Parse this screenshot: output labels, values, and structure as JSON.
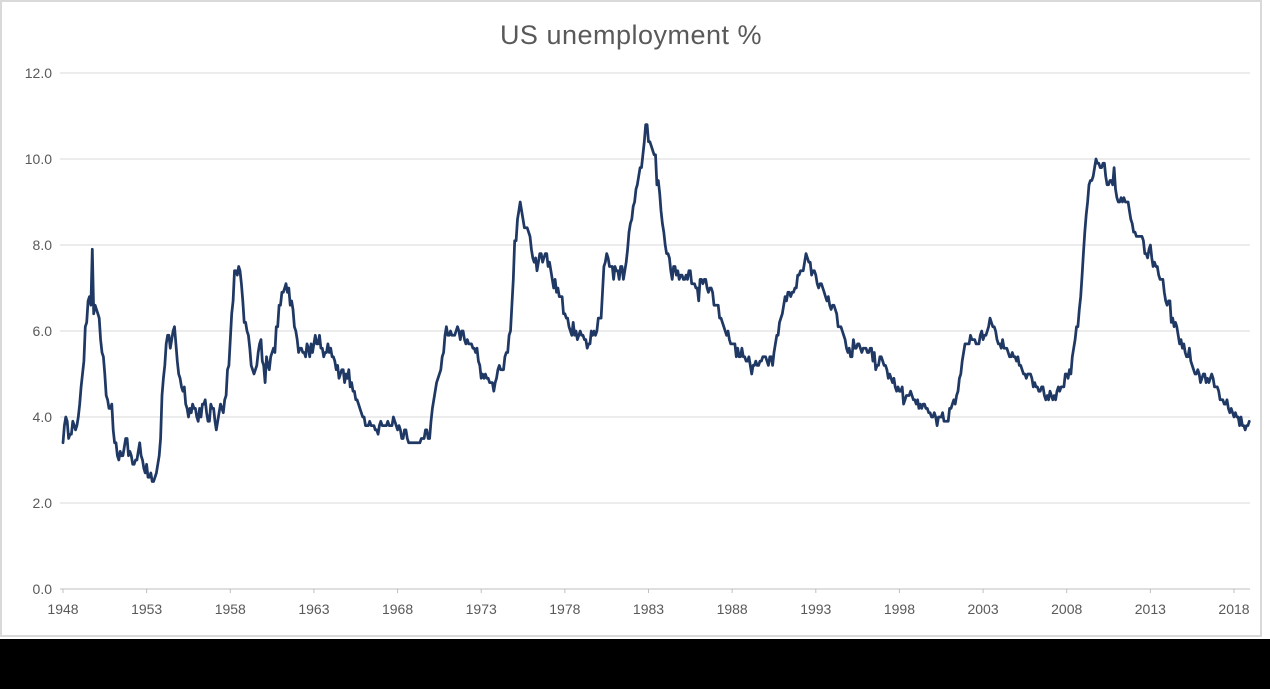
{
  "window": {
    "background_color": "#ffffff",
    "frame_border_color": "#d9d9d9",
    "letterbox_color": "#000000"
  },
  "chart": {
    "title": "US unemployment %",
    "title_color": "#595959",
    "line_color": "#1f3864",
    "gridline_color": "#d9d9d9",
    "axis_color": "#bfbfbf",
    "tick_label_color": "#595959"
  },
  "chart_data": {
    "type": "line",
    "title": "US unemployment %",
    "xlabel": "",
    "ylabel": "",
    "ylim": [
      0,
      12
    ],
    "grid": "horizontal",
    "legend": "none",
    "x_start_year": 1948,
    "frequency": "monthly",
    "x_tick_years": [
      1948,
      1953,
      1958,
      1963,
      1968,
      1973,
      1978,
      1983,
      1988,
      1993,
      1998,
      2003,
      2008,
      2013,
      2018
    ],
    "y_ticks": [
      0,
      2,
      4,
      6,
      8,
      10,
      12
    ],
    "y_tick_labels": [
      "0.0",
      "2.0",
      "4.0",
      "6.0",
      "8.0",
      "10.0",
      "12.0"
    ],
    "series": [
      {
        "name": "US unemployment %",
        "values": [
          3.4,
          3.8,
          4.0,
          3.9,
          3.5,
          3.6,
          3.6,
          3.9,
          3.8,
          3.7,
          3.8,
          4.0,
          4.3,
          4.7,
          5.0,
          5.3,
          6.1,
          6.2,
          6.7,
          6.8,
          6.6,
          7.9,
          6.4,
          6.6,
          6.5,
          6.4,
          6.3,
          5.8,
          5.5,
          5.4,
          5.0,
          4.5,
          4.4,
          4.2,
          4.2,
          4.3,
          3.7,
          3.4,
          3.4,
          3.1,
          3.0,
          3.2,
          3.1,
          3.1,
          3.3,
          3.5,
          3.5,
          3.1,
          3.2,
          3.1,
          2.9,
          2.9,
          3.0,
          3.0,
          3.2,
          3.4,
          3.1,
          3.0,
          2.8,
          2.7,
          2.9,
          2.6,
          2.6,
          2.7,
          2.5,
          2.5,
          2.6,
          2.7,
          2.9,
          3.1,
          3.5,
          4.5,
          4.9,
          5.2,
          5.7,
          5.9,
          5.9,
          5.6,
          5.8,
          6.0,
          6.1,
          5.7,
          5.3,
          5.0,
          4.9,
          4.7,
          4.6,
          4.7,
          4.3,
          4.2,
          4.0,
          4.2,
          4.1,
          4.3,
          4.2,
          4.2,
          4.0,
          3.9,
          4.2,
          4.0,
          4.3,
          4.3,
          4.4,
          4.1,
          3.9,
          3.9,
          4.3,
          4.2,
          4.2,
          3.9,
          3.7,
          3.9,
          4.1,
          4.3,
          4.2,
          4.1,
          4.4,
          4.5,
          5.1,
          5.2,
          5.8,
          6.4,
          6.7,
          7.4,
          7.4,
          7.3,
          7.5,
          7.4,
          7.1,
          6.7,
          6.2,
          6.2,
          6.0,
          5.9,
          5.6,
          5.2,
          5.1,
          5.0,
          5.1,
          5.2,
          5.5,
          5.7,
          5.8,
          5.3,
          5.2,
          4.8,
          5.4,
          5.2,
          5.1,
          5.4,
          5.5,
          5.6,
          5.5,
          6.1,
          6.1,
          6.6,
          6.6,
          6.9,
          6.9,
          7.0,
          7.1,
          6.9,
          7.0,
          6.6,
          6.7,
          6.5,
          6.1,
          6.0,
          5.8,
          5.5,
          5.6,
          5.6,
          5.5,
          5.5,
          5.4,
          5.7,
          5.6,
          5.4,
          5.7,
          5.5,
          5.7,
          5.9,
          5.7,
          5.7,
          5.9,
          5.6,
          5.6,
          5.4,
          5.5,
          5.5,
          5.7,
          5.5,
          5.6,
          5.4,
          5.4,
          5.3,
          5.1,
          5.2,
          4.9,
          5.0,
          5.1,
          5.1,
          4.8,
          5.0,
          4.9,
          5.1,
          4.7,
          4.8,
          4.6,
          4.6,
          4.4,
          4.4,
          4.3,
          4.2,
          4.1,
          4.0,
          4.0,
          3.8,
          3.8,
          3.8,
          3.9,
          3.8,
          3.8,
          3.8,
          3.7,
          3.7,
          3.6,
          3.8,
          3.9,
          3.8,
          3.8,
          3.8,
          3.8,
          3.9,
          3.8,
          3.8,
          3.8,
          4.0,
          3.9,
          3.8,
          3.7,
          3.8,
          3.7,
          3.5,
          3.5,
          3.7,
          3.7,
          3.5,
          3.4,
          3.4,
          3.4,
          3.4,
          3.4,
          3.4,
          3.4,
          3.4,
          3.4,
          3.5,
          3.5,
          3.5,
          3.7,
          3.7,
          3.5,
          3.5,
          3.9,
          4.2,
          4.4,
          4.6,
          4.8,
          4.9,
          5.0,
          5.1,
          5.4,
          5.5,
          5.9,
          6.1,
          5.9,
          5.9,
          6.0,
          5.9,
          5.9,
          5.9,
          6.0,
          6.1,
          6.0,
          5.8,
          6.0,
          6.0,
          5.8,
          5.7,
          5.8,
          5.7,
          5.7,
          5.7,
          5.6,
          5.6,
          5.5,
          5.6,
          5.3,
          5.2,
          4.9,
          5.0,
          4.9,
          5.0,
          4.9,
          4.9,
          4.8,
          4.8,
          4.8,
          4.6,
          4.8,
          4.9,
          5.1,
          5.2,
          5.1,
          5.1,
          5.1,
          5.4,
          5.5,
          5.5,
          5.9,
          6.0,
          6.6,
          7.2,
          8.1,
          8.1,
          8.6,
          8.8,
          9.0,
          8.8,
          8.6,
          8.4,
          8.4,
          8.4,
          8.3,
          8.2,
          7.9,
          7.7,
          7.6,
          7.7,
          7.4,
          7.6,
          7.8,
          7.8,
          7.6,
          7.7,
          7.8,
          7.8,
          7.5,
          7.6,
          7.4,
          7.2,
          7.0,
          7.2,
          6.9,
          7.0,
          6.8,
          6.8,
          6.8,
          6.4,
          6.4,
          6.3,
          6.3,
          6.1,
          6.0,
          5.9,
          6.2,
          5.9,
          6.0,
          5.8,
          5.9,
          6.0,
          5.9,
          5.9,
          5.8,
          5.8,
          5.6,
          5.7,
          5.7,
          6.0,
          5.9,
          6.0,
          5.9,
          6.0,
          6.3,
          6.3,
          6.3,
          6.9,
          7.5,
          7.6,
          7.8,
          7.7,
          7.5,
          7.5,
          7.5,
          7.2,
          7.5,
          7.4,
          7.4,
          7.2,
          7.5,
          7.5,
          7.2,
          7.4,
          7.6,
          7.9,
          8.3,
          8.5,
          8.6,
          8.9,
          9.0,
          9.3,
          9.4,
          9.6,
          9.8,
          9.8,
          10.1,
          10.4,
          10.8,
          10.8,
          10.4,
          10.4,
          10.3,
          10.2,
          10.1,
          10.1,
          9.4,
          9.5,
          9.2,
          8.8,
          8.5,
          8.3,
          8.0,
          7.8,
          7.8,
          7.7,
          7.4,
          7.2,
          7.5,
          7.5,
          7.3,
          7.4,
          7.2,
          7.3,
          7.3,
          7.2,
          7.2,
          7.3,
          7.2,
          7.4,
          7.4,
          7.1,
          7.1,
          7.1,
          7.0,
          7.0,
          6.7,
          7.2,
          7.2,
          7.1,
          7.2,
          7.2,
          7.0,
          6.9,
          7.0,
          7.0,
          6.9,
          6.6,
          6.6,
          6.6,
          6.6,
          6.3,
          6.3,
          6.2,
          6.1,
          6.0,
          5.9,
          6.0,
          5.8,
          5.7,
          5.7,
          5.7,
          5.7,
          5.4,
          5.6,
          5.4,
          5.4,
          5.6,
          5.4,
          5.4,
          5.3,
          5.3,
          5.4,
          5.2,
          5.0,
          5.2,
          5.2,
          5.3,
          5.2,
          5.2,
          5.3,
          5.3,
          5.4,
          5.4,
          5.4,
          5.3,
          5.2,
          5.4,
          5.4,
          5.2,
          5.5,
          5.7,
          5.9,
          5.9,
          6.2,
          6.3,
          6.4,
          6.6,
          6.8,
          6.7,
          6.9,
          6.9,
          6.8,
          6.9,
          6.9,
          7.0,
          7.0,
          7.3,
          7.3,
          7.4,
          7.4,
          7.4,
          7.6,
          7.8,
          7.7,
          7.6,
          7.6,
          7.3,
          7.4,
          7.4,
          7.3,
          7.1,
          7.0,
          7.1,
          7.1,
          7.0,
          6.9,
          6.8,
          6.7,
          6.8,
          6.6,
          6.5,
          6.6,
          6.6,
          6.5,
          6.4,
          6.1,
          6.1,
          6.1,
          6.0,
          5.9,
          5.8,
          5.6,
          5.5,
          5.6,
          5.4,
          5.4,
          5.8,
          5.6,
          5.6,
          5.7,
          5.7,
          5.6,
          5.5,
          5.6,
          5.6,
          5.6,
          5.5,
          5.5,
          5.6,
          5.6,
          5.3,
          5.5,
          5.1,
          5.2,
          5.2,
          5.4,
          5.4,
          5.3,
          5.2,
          5.2,
          5.1,
          4.9,
          5.0,
          4.9,
          4.8,
          4.9,
          4.7,
          4.6,
          4.7,
          4.6,
          4.6,
          4.7,
          4.3,
          4.4,
          4.5,
          4.5,
          4.5,
          4.6,
          4.5,
          4.4,
          4.4,
          4.3,
          4.4,
          4.2,
          4.3,
          4.2,
          4.3,
          4.3,
          4.2,
          4.2,
          4.1,
          4.1,
          4.0,
          4.0,
          4.1,
          4.0,
          3.8,
          4.0,
          4.0,
          4.0,
          4.1,
          3.9,
          3.9,
          3.9,
          3.9,
          4.2,
          4.2,
          4.3,
          4.4,
          4.3,
          4.5,
          4.6,
          4.9,
          5.0,
          5.3,
          5.5,
          5.7,
          5.7,
          5.7,
          5.7,
          5.9,
          5.8,
          5.8,
          5.8,
          5.7,
          5.7,
          5.7,
          5.9,
          6.0,
          5.8,
          5.9,
          5.9,
          6.0,
          6.1,
          6.3,
          6.2,
          6.1,
          6.1,
          6.0,
          5.8,
          5.7,
          5.7,
          5.6,
          5.8,
          5.6,
          5.6,
          5.6,
          5.5,
          5.4,
          5.4,
          5.5,
          5.4,
          5.4,
          5.3,
          5.4,
          5.2,
          5.2,
          5.1,
          5.0,
          5.0,
          4.9,
          5.0,
          5.0,
          5.0,
          4.9,
          4.7,
          4.8,
          4.7,
          4.7,
          4.6,
          4.6,
          4.7,
          4.7,
          4.5,
          4.4,
          4.5,
          4.4,
          4.6,
          4.5,
          4.4,
          4.5,
          4.4,
          4.6,
          4.7,
          4.6,
          4.7,
          4.7,
          4.7,
          5.0,
          5.0,
          4.9,
          5.1,
          5.0,
          5.4,
          5.6,
          5.8,
          6.1,
          6.1,
          6.5,
          6.8,
          7.3,
          7.8,
          8.3,
          8.7,
          9.0,
          9.4,
          9.5,
          9.5,
          9.6,
          9.8,
          10.0,
          9.9,
          9.9,
          9.8,
          9.8,
          9.9,
          9.9,
          9.6,
          9.4,
          9.4,
          9.5,
          9.5,
          9.4,
          9.8,
          9.3,
          9.1,
          9.0,
          9.0,
          9.1,
          9.0,
          9.1,
          9.0,
          9.0,
          9.0,
          8.8,
          8.6,
          8.5,
          8.3,
          8.3,
          8.2,
          8.2,
          8.2,
          8.2,
          8.2,
          8.1,
          7.8,
          7.8,
          7.7,
          7.9,
          8.0,
          7.7,
          7.5,
          7.6,
          7.5,
          7.5,
          7.3,
          7.2,
          7.2,
          7.2,
          6.9,
          6.7,
          6.6,
          6.7,
          6.7,
          6.2,
          6.3,
          6.1,
          6.2,
          6.1,
          5.9,
          5.7,
          5.8,
          5.6,
          5.7,
          5.5,
          5.4,
          5.4,
          5.6,
          5.3,
          5.2,
          5.1,
          5.0,
          5.0,
          5.1,
          5.0,
          4.8,
          4.9,
          5.0,
          5.0,
          4.8,
          4.9,
          4.8,
          4.9,
          5.0,
          4.9,
          4.7,
          4.7,
          4.7,
          4.6,
          4.4,
          4.4,
          4.4,
          4.3,
          4.3,
          4.4,
          4.2,
          4.1,
          4.2,
          4.1,
          4.0,
          4.1,
          4.0,
          4.0,
          3.8,
          4.0,
          3.8,
          3.8,
          3.7,
          3.8,
          3.8,
          3.9
        ]
      }
    ]
  }
}
